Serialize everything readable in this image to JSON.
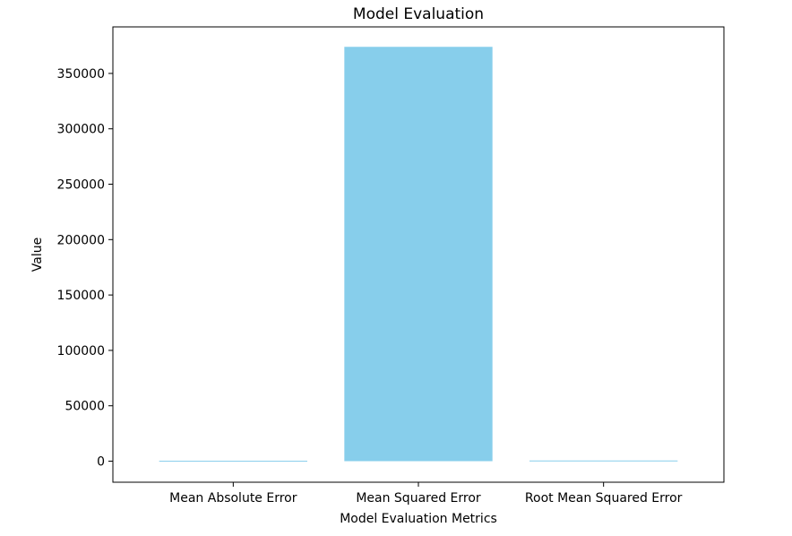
{
  "chart_data": {
    "type": "bar",
    "title": "Model Evaluation",
    "xlabel": "Model Evaluation Metrics",
    "ylabel": "Value",
    "categories": [
      "Mean Absolute Error",
      "Mean Squared Error",
      "Root Mean Squared Error"
    ],
    "values": [
      370,
      374000,
      611
    ],
    "ylim": [
      -19000,
      392000
    ],
    "yticks": [
      0,
      50000,
      100000,
      150000,
      200000,
      250000,
      300000,
      350000
    ],
    "ytick_labels": [
      "0",
      "50000",
      "100000",
      "150000",
      "200000",
      "250000",
      "300000",
      "350000"
    ],
    "bar_color": "#87ceeb",
    "grid": false,
    "legend": false
  }
}
